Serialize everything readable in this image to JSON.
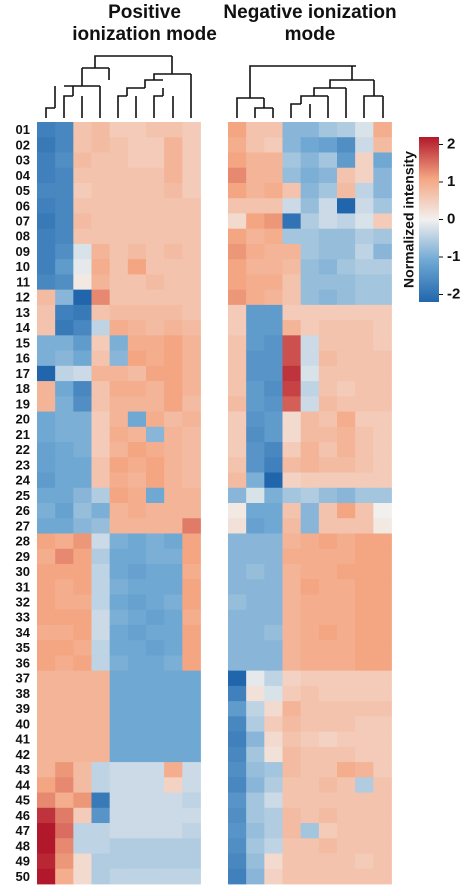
{
  "chart_data": [
    {
      "type": "heatmap",
      "title": "Positive ionization mode",
      "categories": [
        "01",
        "02",
        "03",
        "04",
        "05",
        "06",
        "07",
        "08",
        "09",
        "10",
        "11",
        "12",
        "13",
        "14",
        "15",
        "16",
        "17",
        "18",
        "19",
        "20",
        "21",
        "22",
        "23",
        "24",
        "25",
        "26",
        "27",
        "28",
        "29",
        "30",
        "31",
        "32",
        "33",
        "34",
        "35",
        "36",
        "37",
        "38",
        "39",
        "40",
        "41",
        "42",
        "43",
        "44",
        "45",
        "46",
        "47",
        "48",
        "49",
        "50"
      ],
      "values": [
        [
          -1.6,
          -1.5,
          0.6,
          0.7,
          0.5,
          0.5,
          0.6,
          0.6,
          0.5
        ],
        [
          -1.7,
          -1.5,
          0.6,
          0.7,
          0.6,
          0.5,
          0.5,
          0.8,
          0.5
        ],
        [
          -1.6,
          -1.4,
          0.7,
          0.6,
          0.6,
          0.5,
          0.5,
          0.8,
          0.5
        ],
        [
          -1.6,
          -1.5,
          0.6,
          0.6,
          0.6,
          0.6,
          0.6,
          0.8,
          0.5
        ],
        [
          -1.5,
          -1.5,
          0.5,
          0.6,
          0.6,
          0.6,
          0.6,
          0.7,
          0.5
        ],
        [
          -1.6,
          -1.5,
          0.6,
          0.6,
          0.6,
          0.6,
          0.6,
          0.6,
          0.6
        ],
        [
          -1.7,
          -1.5,
          0.7,
          0.6,
          0.6,
          0.6,
          0.6,
          0.6,
          0.6
        ],
        [
          -1.6,
          -1.5,
          0.6,
          0.6,
          0.6,
          0.6,
          0.6,
          0.6,
          0.6
        ],
        [
          -1.6,
          -1.4,
          -0.2,
          0.8,
          0.6,
          0.7,
          0.6,
          0.7,
          0.6
        ],
        [
          -1.6,
          -1.2,
          -0.1,
          0.9,
          0.6,
          1.0,
          0.6,
          0.6,
          0.6
        ],
        [
          -1.5,
          -1.4,
          0.1,
          0.8,
          0.6,
          0.6,
          0.7,
          0.6,
          0.6
        ],
        [
          0.7,
          -0.8,
          -2.0,
          1.2,
          0.6,
          0.6,
          0.6,
          0.6,
          0.6
        ],
        [
          0.6,
          -1.6,
          -1.7,
          0.6,
          0.7,
          0.7,
          0.7,
          0.7,
          0.6
        ],
        [
          0.6,
          -1.7,
          -1.5,
          -0.4,
          0.9,
          0.8,
          0.7,
          0.8,
          0.7
        ],
        [
          -0.9,
          -0.9,
          -1.2,
          0.5,
          -0.9,
          0.9,
          0.9,
          1.0,
          0.8
        ],
        [
          -0.9,
          -0.8,
          -1.0,
          0.6,
          -0.8,
          1.0,
          0.9,
          1.0,
          0.8
        ],
        [
          -2.0,
          -0.4,
          -0.3,
          0.8,
          0.8,
          0.7,
          1.0,
          1.0,
          0.8
        ],
        [
          0.8,
          -1.0,
          -1.5,
          0.6,
          0.9,
          0.9,
          0.8,
          1.0,
          0.8
        ],
        [
          0.8,
          -0.9,
          -1.4,
          0.6,
          0.8,
          0.8,
          0.8,
          1.0,
          0.7
        ],
        [
          -1.0,
          -0.9,
          -0.9,
          0.5,
          0.8,
          -1.0,
          0.9,
          0.7,
          0.8
        ],
        [
          -1.0,
          -0.9,
          -0.9,
          0.5,
          0.9,
          0.8,
          -0.8,
          0.8,
          0.7
        ],
        [
          -1.1,
          -1.0,
          -0.9,
          0.5,
          0.8,
          1.0,
          0.9,
          0.8,
          0.7
        ],
        [
          -1.1,
          -1.0,
          -1.0,
          0.6,
          1.0,
          0.9,
          1.0,
          0.8,
          0.7
        ],
        [
          -1.2,
          -1.0,
          -1.0,
          0.6,
          0.9,
          0.8,
          1.0,
          0.8,
          0.7
        ],
        [
          -1.0,
          -1.0,
          -0.8,
          -0.5,
          1.0,
          0.9,
          -1.0,
          0.8,
          0.8
        ],
        [
          -0.9,
          -1.1,
          -0.7,
          -0.9,
          0.8,
          0.9,
          0.8,
          0.8,
          0.8
        ],
        [
          -1.0,
          -1.0,
          -0.8,
          -0.7,
          0.8,
          0.8,
          0.8,
          0.8,
          1.3
        ],
        [
          1.0,
          0.9,
          1.1,
          -0.3,
          -0.9,
          -1.0,
          -0.9,
          -1.0,
          1.0
        ],
        [
          0.9,
          1.2,
          1.0,
          -0.5,
          -1.0,
          -1.0,
          -0.9,
          -0.9,
          1.0
        ],
        [
          1.0,
          1.0,
          1.0,
          -0.4,
          -1.0,
          -1.1,
          -1.0,
          -1.0,
          0.9
        ],
        [
          1.0,
          0.9,
          1.0,
          -0.4,
          -0.9,
          -1.0,
          -1.0,
          -1.0,
          1.0
        ],
        [
          1.0,
          0.9,
          0.9,
          -0.4,
          -1.0,
          -1.1,
          -1.0,
          -0.9,
          1.0
        ],
        [
          1.0,
          1.0,
          1.0,
          -0.3,
          -0.9,
          -1.0,
          -1.1,
          -1.0,
          0.9
        ],
        [
          0.9,
          0.9,
          1.0,
          -0.3,
          -1.0,
          -1.1,
          -1.0,
          -1.0,
          1.0
        ],
        [
          1.0,
          1.0,
          0.9,
          -0.4,
          -1.0,
          -1.0,
          -1.1,
          -1.0,
          1.0
        ],
        [
          1.0,
          0.9,
          1.0,
          -0.4,
          -0.9,
          -1.0,
          -1.0,
          -0.9,
          1.0
        ],
        [
          0.8,
          0.8,
          0.8,
          0.8,
          -1.0,
          -1.0,
          -1.0,
          -1.0,
          -1.0
        ],
        [
          0.8,
          0.8,
          0.8,
          0.8,
          -1.0,
          -1.0,
          -1.0,
          -1.0,
          -1.0
        ],
        [
          0.8,
          0.8,
          0.8,
          0.8,
          -1.0,
          -1.0,
          -1.0,
          -1.0,
          -1.0
        ],
        [
          0.8,
          0.8,
          0.8,
          0.8,
          -1.0,
          -1.0,
          -1.0,
          -1.0,
          -1.0
        ],
        [
          0.8,
          0.8,
          0.8,
          0.8,
          -1.0,
          -1.0,
          -1.0,
          -1.0,
          -1.0
        ],
        [
          0.8,
          0.8,
          0.8,
          0.8,
          -1.0,
          -1.0,
          -1.0,
          -1.0,
          -1.0
        ],
        [
          0.8,
          1.1,
          0.7,
          -0.4,
          -0.3,
          -0.3,
          -0.3,
          0.9,
          -0.3
        ],
        [
          1.0,
          1.2,
          0.7,
          -0.4,
          -0.3,
          -0.3,
          -0.3,
          0.4,
          -0.3
        ],
        [
          1.2,
          0.9,
          1.1,
          -1.7,
          -0.3,
          -0.3,
          -0.3,
          -0.3,
          -0.4
        ],
        [
          1.8,
          1.3,
          0.5,
          -1.3,
          -0.3,
          -0.3,
          -0.3,
          -0.3,
          -0.3
        ],
        [
          2.0,
          1.4,
          -0.4,
          -0.4,
          -0.3,
          -0.3,
          -0.3,
          -0.3,
          -0.4
        ],
        [
          2.0,
          1.2,
          -0.4,
          -0.4,
          -0.5,
          -0.5,
          -0.5,
          -0.5,
          -0.5
        ],
        [
          1.9,
          1.1,
          0.3,
          -0.5,
          -0.5,
          -0.5,
          -0.5,
          -0.5,
          -0.5
        ],
        [
          2.0,
          0.9,
          0.3,
          -0.5,
          -0.4,
          -0.4,
          -0.4,
          -0.4,
          -0.4
        ]
      ]
    },
    {
      "type": "heatmap",
      "title": "Negative ionization mode",
      "values": [
        [
          1.0,
          0.6,
          0.6,
          -0.8,
          -0.8,
          -0.6,
          -0.5,
          -0.2,
          0.9
        ],
        [
          0.9,
          0.6,
          0.5,
          -0.8,
          -1.0,
          -1.1,
          -1.4,
          -0.3,
          0.7
        ],
        [
          1.0,
          0.8,
          0.8,
          -0.6,
          -0.8,
          -0.6,
          -1.2,
          0.4,
          -1.0
        ],
        [
          1.2,
          0.8,
          0.8,
          -0.7,
          -0.9,
          -0.8,
          0.6,
          0.4,
          -0.8
        ],
        [
          1.0,
          0.8,
          0.9,
          0.6,
          -0.8,
          -0.6,
          0.7,
          -0.4,
          -0.8
        ],
        [
          0.6,
          0.6,
          0.6,
          -0.3,
          -0.7,
          -0.3,
          -2.0,
          -0.3,
          -0.6
        ],
        [
          0.3,
          1.0,
          1.1,
          -1.8,
          -0.5,
          -0.3,
          -0.4,
          -0.2,
          0.5
        ],
        [
          1.0,
          0.8,
          0.9,
          -0.6,
          -0.6,
          -0.7,
          -0.7,
          -0.5,
          -0.6
        ],
        [
          1.1,
          0.9,
          0.8,
          0.8,
          -0.6,
          -0.7,
          -0.7,
          -0.4,
          -0.8
        ],
        [
          1.0,
          0.8,
          0.8,
          0.7,
          -0.7,
          -0.8,
          -0.6,
          -0.5,
          -0.5
        ],
        [
          1.0,
          0.9,
          0.9,
          0.6,
          -0.7,
          -0.7,
          -0.7,
          -0.6,
          -0.6
        ],
        [
          1.1,
          0.9,
          0.8,
          0.6,
          -0.7,
          -0.8,
          -0.7,
          -0.6,
          -0.6
        ],
        [
          0.5,
          -1.2,
          -1.2,
          0.5,
          0.5,
          0.5,
          0.5,
          0.5,
          0.5
        ],
        [
          0.5,
          -1.2,
          -1.2,
          0.8,
          0.5,
          0.6,
          0.6,
          0.6,
          0.5
        ],
        [
          0.6,
          -1.2,
          -1.3,
          1.6,
          -0.3,
          0.6,
          0.6,
          0.6,
          0.5
        ],
        [
          0.6,
          -1.3,
          -1.3,
          1.6,
          -0.3,
          0.7,
          0.6,
          0.6,
          0.6
        ],
        [
          0.6,
          -1.3,
          -1.3,
          1.8,
          -0.2,
          0.6,
          0.6,
          0.6,
          0.6
        ],
        [
          0.6,
          -1.2,
          -1.4,
          1.7,
          -0.4,
          0.6,
          0.5,
          0.6,
          0.6
        ],
        [
          0.7,
          -1.2,
          -1.3,
          1.5,
          -0.3,
          0.7,
          0.6,
          0.6,
          0.6
        ],
        [
          0.5,
          -1.3,
          -1.2,
          0.3,
          0.7,
          0.6,
          0.9,
          0.5,
          0.5
        ],
        [
          0.5,
          -1.4,
          -1.2,
          0.3,
          0.7,
          0.7,
          0.8,
          0.6,
          0.5
        ],
        [
          0.5,
          -1.3,
          -1.5,
          0.5,
          0.8,
          0.6,
          0.8,
          0.6,
          0.5
        ],
        [
          0.6,
          -1.3,
          -1.6,
          0.7,
          0.8,
          0.7,
          0.7,
          0.6,
          0.5
        ],
        [
          0.7,
          -0.9,
          -2.0,
          0.4,
          0.5,
          0.5,
          0.5,
          0.5,
          0.5
        ],
        [
          -0.8,
          -0.2,
          -0.9,
          -0.6,
          -0.5,
          -0.7,
          -0.8,
          -0.6,
          -0.6
        ],
        [
          0.1,
          -1.0,
          -1.0,
          0.6,
          -0.8,
          0.6,
          1.0,
          0.6,
          0.0
        ],
        [
          0.2,
          -1.1,
          -1.0,
          0.7,
          -0.8,
          0.6,
          0.6,
          0.6,
          0.1
        ],
        [
          -0.8,
          -0.8,
          -0.8,
          0.8,
          0.9,
          1.0,
          0.9,
          1.0,
          1.0
        ],
        [
          -0.8,
          -0.8,
          -0.8,
          0.9,
          0.9,
          0.9,
          0.9,
          1.0,
          1.0
        ],
        [
          -0.8,
          -0.7,
          -0.8,
          0.8,
          0.9,
          0.9,
          1.0,
          1.0,
          1.0
        ],
        [
          -0.8,
          -0.8,
          -0.8,
          0.8,
          1.0,
          0.9,
          0.9,
          1.0,
          1.0
        ],
        [
          -0.7,
          -0.8,
          -0.8,
          0.8,
          0.9,
          0.9,
          0.9,
          1.0,
          1.0
        ],
        [
          -0.8,
          -0.8,
          -0.8,
          0.8,
          0.9,
          0.9,
          0.9,
          1.0,
          1.0
        ],
        [
          -0.8,
          -0.8,
          -0.7,
          0.8,
          0.9,
          1.0,
          0.9,
          1.0,
          1.0
        ],
        [
          -0.8,
          -0.8,
          -0.8,
          0.8,
          0.9,
          0.9,
          0.9,
          1.0,
          1.0
        ],
        [
          -0.8,
          -0.8,
          -0.8,
          0.8,
          0.9,
          0.9,
          0.9,
          1.0,
          1.0
        ],
        [
          -2.0,
          -0.1,
          -0.4,
          0.4,
          0.5,
          0.5,
          0.5,
          0.5,
          0.5
        ],
        [
          -1.6,
          0.2,
          -0.2,
          0.5,
          0.6,
          0.5,
          0.5,
          0.5,
          0.5
        ],
        [
          -1.2,
          -0.4,
          0.3,
          0.8,
          0.6,
          0.6,
          0.6,
          0.6,
          0.6
        ],
        [
          -1.5,
          -0.5,
          0.5,
          0.7,
          0.6,
          0.6,
          0.6,
          0.5,
          0.5
        ],
        [
          -1.6,
          -0.8,
          0.3,
          0.6,
          0.5,
          0.4,
          0.5,
          0.5,
          0.5
        ],
        [
          -1.5,
          -0.6,
          0.2,
          0.7,
          0.6,
          0.6,
          0.6,
          0.5,
          0.5
        ],
        [
          -1.4,
          -0.7,
          -0.6,
          0.7,
          0.6,
          0.6,
          0.9,
          0.8,
          0.5
        ],
        [
          -1.5,
          -0.8,
          -0.5,
          0.6,
          0.6,
          0.7,
          0.6,
          -0.5,
          0.6
        ],
        [
          -1.3,
          -0.6,
          -0.3,
          0.6,
          0.6,
          0.6,
          0.6,
          0.6,
          0.6
        ],
        [
          -1.4,
          -0.6,
          -0.5,
          0.7,
          0.6,
          0.7,
          0.6,
          0.6,
          0.6
        ],
        [
          -1.3,
          -0.7,
          -0.5,
          0.7,
          -0.6,
          0.5,
          0.6,
          0.6,
          0.6
        ],
        [
          -1.4,
          -0.6,
          -0.4,
          0.6,
          0.6,
          0.7,
          0.6,
          0.6,
          0.6
        ],
        [
          -1.5,
          -0.7,
          0.3,
          0.6,
          0.6,
          0.6,
          0.6,
          0.5,
          0.6
        ],
        [
          -1.6,
          -0.8,
          0.4,
          0.6,
          0.6,
          0.6,
          0.6,
          0.6,
          0.6
        ]
      ],
      "colorbar": {
        "label": "Normalized intensity",
        "lim": [
          -2.2,
          2.2
        ],
        "ticks": [
          -2,
          -1,
          0,
          1,
          2
        ]
      }
    }
  ]
}
